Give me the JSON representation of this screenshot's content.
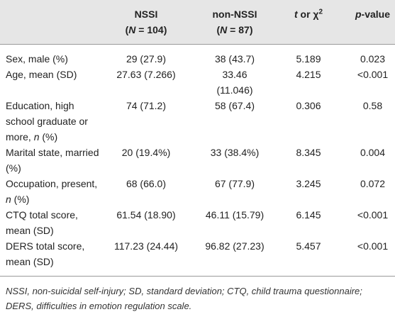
{
  "table": {
    "header": [
      [
        "NSSI",
        "(",
        "N",
        " = 104)"
      ],
      [
        "non-NSSI",
        "(",
        "N",
        " = 87)"
      ],
      [
        "t",
        " or χ",
        "2"
      ],
      [
        "p",
        "-value"
      ]
    ],
    "rows": [
      {
        "label": [
          "Sex, male (%)"
        ],
        "cells": [
          "29 (27.9)",
          "38 (43.7)",
          "5.189",
          "0.023"
        ]
      },
      {
        "label": [
          "Age, mean (SD)"
        ],
        "cells": [
          "27.63 (7.266)",
          "33.46 (11.046)",
          "4.215",
          "<0.001"
        ]
      },
      {
        "label": [
          "Education, high school graduate or more, ",
          "n",
          " (%)"
        ],
        "cells": [
          "74 (71.2)",
          "58 (67.4)",
          "0.306",
          "0.58"
        ]
      },
      {
        "label": [
          "Marital state, married (%)"
        ],
        "cells": [
          "20 (19.4%)",
          "33 (38.4%)",
          "8.345",
          "0.004"
        ]
      },
      {
        "label": [
          "Occupation, present, ",
          "n",
          " (%)"
        ],
        "cells": [
          "68 (66.0)",
          "67 (77.9)",
          "3.245",
          "0.072"
        ]
      },
      {
        "label": [
          "CTQ total score, mean (SD)"
        ],
        "cells": [
          "61.54 (18.90)",
          "46.11 (15.79)",
          "6.145",
          "<0.001"
        ]
      },
      {
        "label": [
          "DERS total score, mean (SD)"
        ],
        "cells": [
          "117.23 (24.44)",
          "96.82 (27.23)",
          "5.457",
          "<0.001"
        ]
      }
    ],
    "footnote": "NSSI, non-suicidal self-injury; SD, standard deviation; CTQ, child trauma questionnaire; DERS, difficulties in emotion regulation scale."
  }
}
